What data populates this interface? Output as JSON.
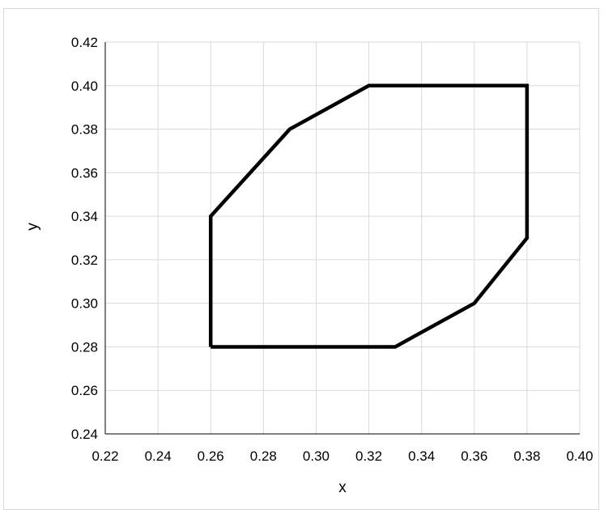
{
  "chart_data": {
    "type": "scatter",
    "title": "",
    "xlabel": "x",
    "ylabel": "y",
    "xlim": [
      0.22,
      0.4
    ],
    "ylim": [
      0.24,
      0.42
    ],
    "xticks": [
      "0.22",
      "0.24",
      "0.26",
      "0.28",
      "0.30",
      "0.32",
      "0.34",
      "0.36",
      "0.38",
      "0.40"
    ],
    "yticks": [
      "0.24",
      "0.26",
      "0.28",
      "0.30",
      "0.32",
      "0.34",
      "0.36",
      "0.38",
      "0.40",
      "0.42"
    ],
    "grid": true,
    "legend": "none",
    "series": [
      {
        "style": "closed-polygon-line",
        "color": "#000000",
        "points": [
          {
            "x": 0.26,
            "y": 0.28
          },
          {
            "x": 0.26,
            "y": 0.34
          },
          {
            "x": 0.29,
            "y": 0.38
          },
          {
            "x": 0.32,
            "y": 0.4
          },
          {
            "x": 0.38,
            "y": 0.4
          },
          {
            "x": 0.38,
            "y": 0.33
          },
          {
            "x": 0.36,
            "y": 0.3
          },
          {
            "x": 0.33,
            "y": 0.28
          },
          {
            "x": 0.26,
            "y": 0.28
          }
        ]
      }
    ],
    "colors": {
      "grid": "#d9d9d9",
      "axis": "#000000",
      "line": "#000000"
    }
  }
}
